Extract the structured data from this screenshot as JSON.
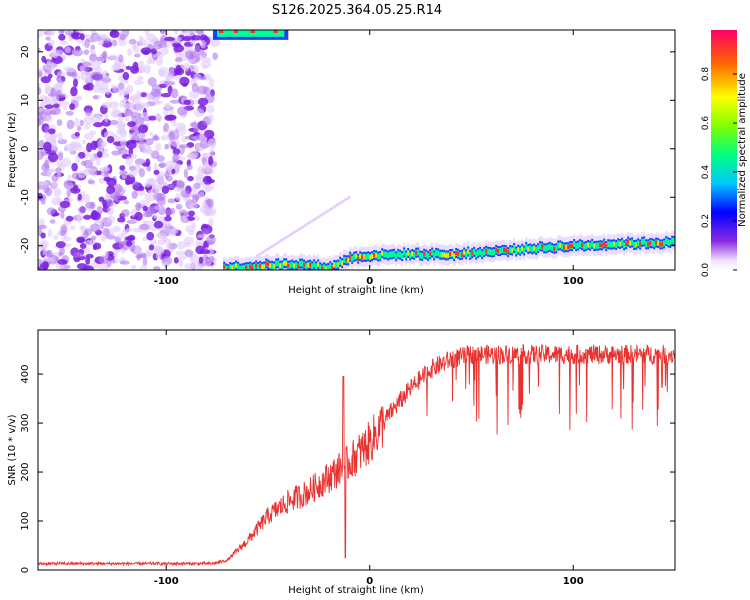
{
  "title": "S126.2025.364.05.25.R14",
  "colors": {
    "snr_line": "#e8322f",
    "spec_purple": "#8a2be2",
    "axis": "#000000"
  },
  "chart_data": [
    {
      "type": "heatmap",
      "name": "spectrogram",
      "xlabel": "Height of straight line (km)",
      "ylabel": "Frequency (Hz)",
      "xlim": [
        -163,
        150
      ],
      "ylim": [
        -25,
        24.5
      ],
      "xticks": [
        "-100",
        "0",
        "100"
      ],
      "yticks": [
        "-20",
        "-10",
        "0",
        "10",
        "20"
      ],
      "noise_region_x": [
        -163,
        -77
      ],
      "carrier_track": [
        {
          "x": -72,
          "f": -24.5
        },
        {
          "x": -60,
          "f": -24.3
        },
        {
          "x": -50,
          "f": -24.0
        },
        {
          "x": -40,
          "f": -23.8
        },
        {
          "x": -30,
          "f": -24.0
        },
        {
          "x": -20,
          "f": -24.5
        },
        {
          "x": -15,
          "f": -23.5
        },
        {
          "x": -10,
          "f": -22.5
        },
        {
          "x": 0,
          "f": -22.0
        },
        {
          "x": 20,
          "f": -21.7
        },
        {
          "x": 40,
          "f": -21.8
        },
        {
          "x": 60,
          "f": -21.2
        },
        {
          "x": 80,
          "f": -20.5
        },
        {
          "x": 100,
          "f": -20.0
        },
        {
          "x": 120,
          "f": -19.6
        },
        {
          "x": 150,
          "f": -19.3
        }
      ],
      "top_band": {
        "x_from": -77,
        "x_to": -40,
        "f": 23.5
      },
      "colorbar": {
        "label": "Normalized spectral amplitude",
        "ticks": [
          "0.0",
          "0.2",
          "0.4",
          "0.6",
          "0.8"
        ],
        "range": [
          0,
          0.98
        ]
      }
    },
    {
      "type": "line",
      "name": "snr",
      "xlabel": "Height of straight line (km)",
      "ylabel": "SNR (10 * v/v)",
      "xlim": [
        -163,
        150
      ],
      "ylim": [
        0,
        490
      ],
      "xticks": [
        "-100",
        "0",
        "100"
      ],
      "yticks": [
        "0",
        "100",
        "200",
        "300",
        "400"
      ],
      "trend": [
        {
          "x": -163,
          "y": 13
        },
        {
          "x": -77,
          "y": 13
        },
        {
          "x": -70,
          "y": 20
        },
        {
          "x": -60,
          "y": 60
        },
        {
          "x": -50,
          "y": 110
        },
        {
          "x": -40,
          "y": 140
        },
        {
          "x": -30,
          "y": 160
        },
        {
          "x": -20,
          "y": 190
        },
        {
          "x": -10,
          "y": 220
        },
        {
          "x": 0,
          "y": 260
        },
        {
          "x": 10,
          "y": 320
        },
        {
          "x": 20,
          "y": 370
        },
        {
          "x": 30,
          "y": 410
        },
        {
          "x": 40,
          "y": 430
        },
        {
          "x": 50,
          "y": 440
        },
        {
          "x": 150,
          "y": 440
        }
      ],
      "spikes": [
        {
          "x": -13,
          "y": 395
        },
        {
          "x": -12,
          "y": 25
        }
      ]
    }
  ]
}
